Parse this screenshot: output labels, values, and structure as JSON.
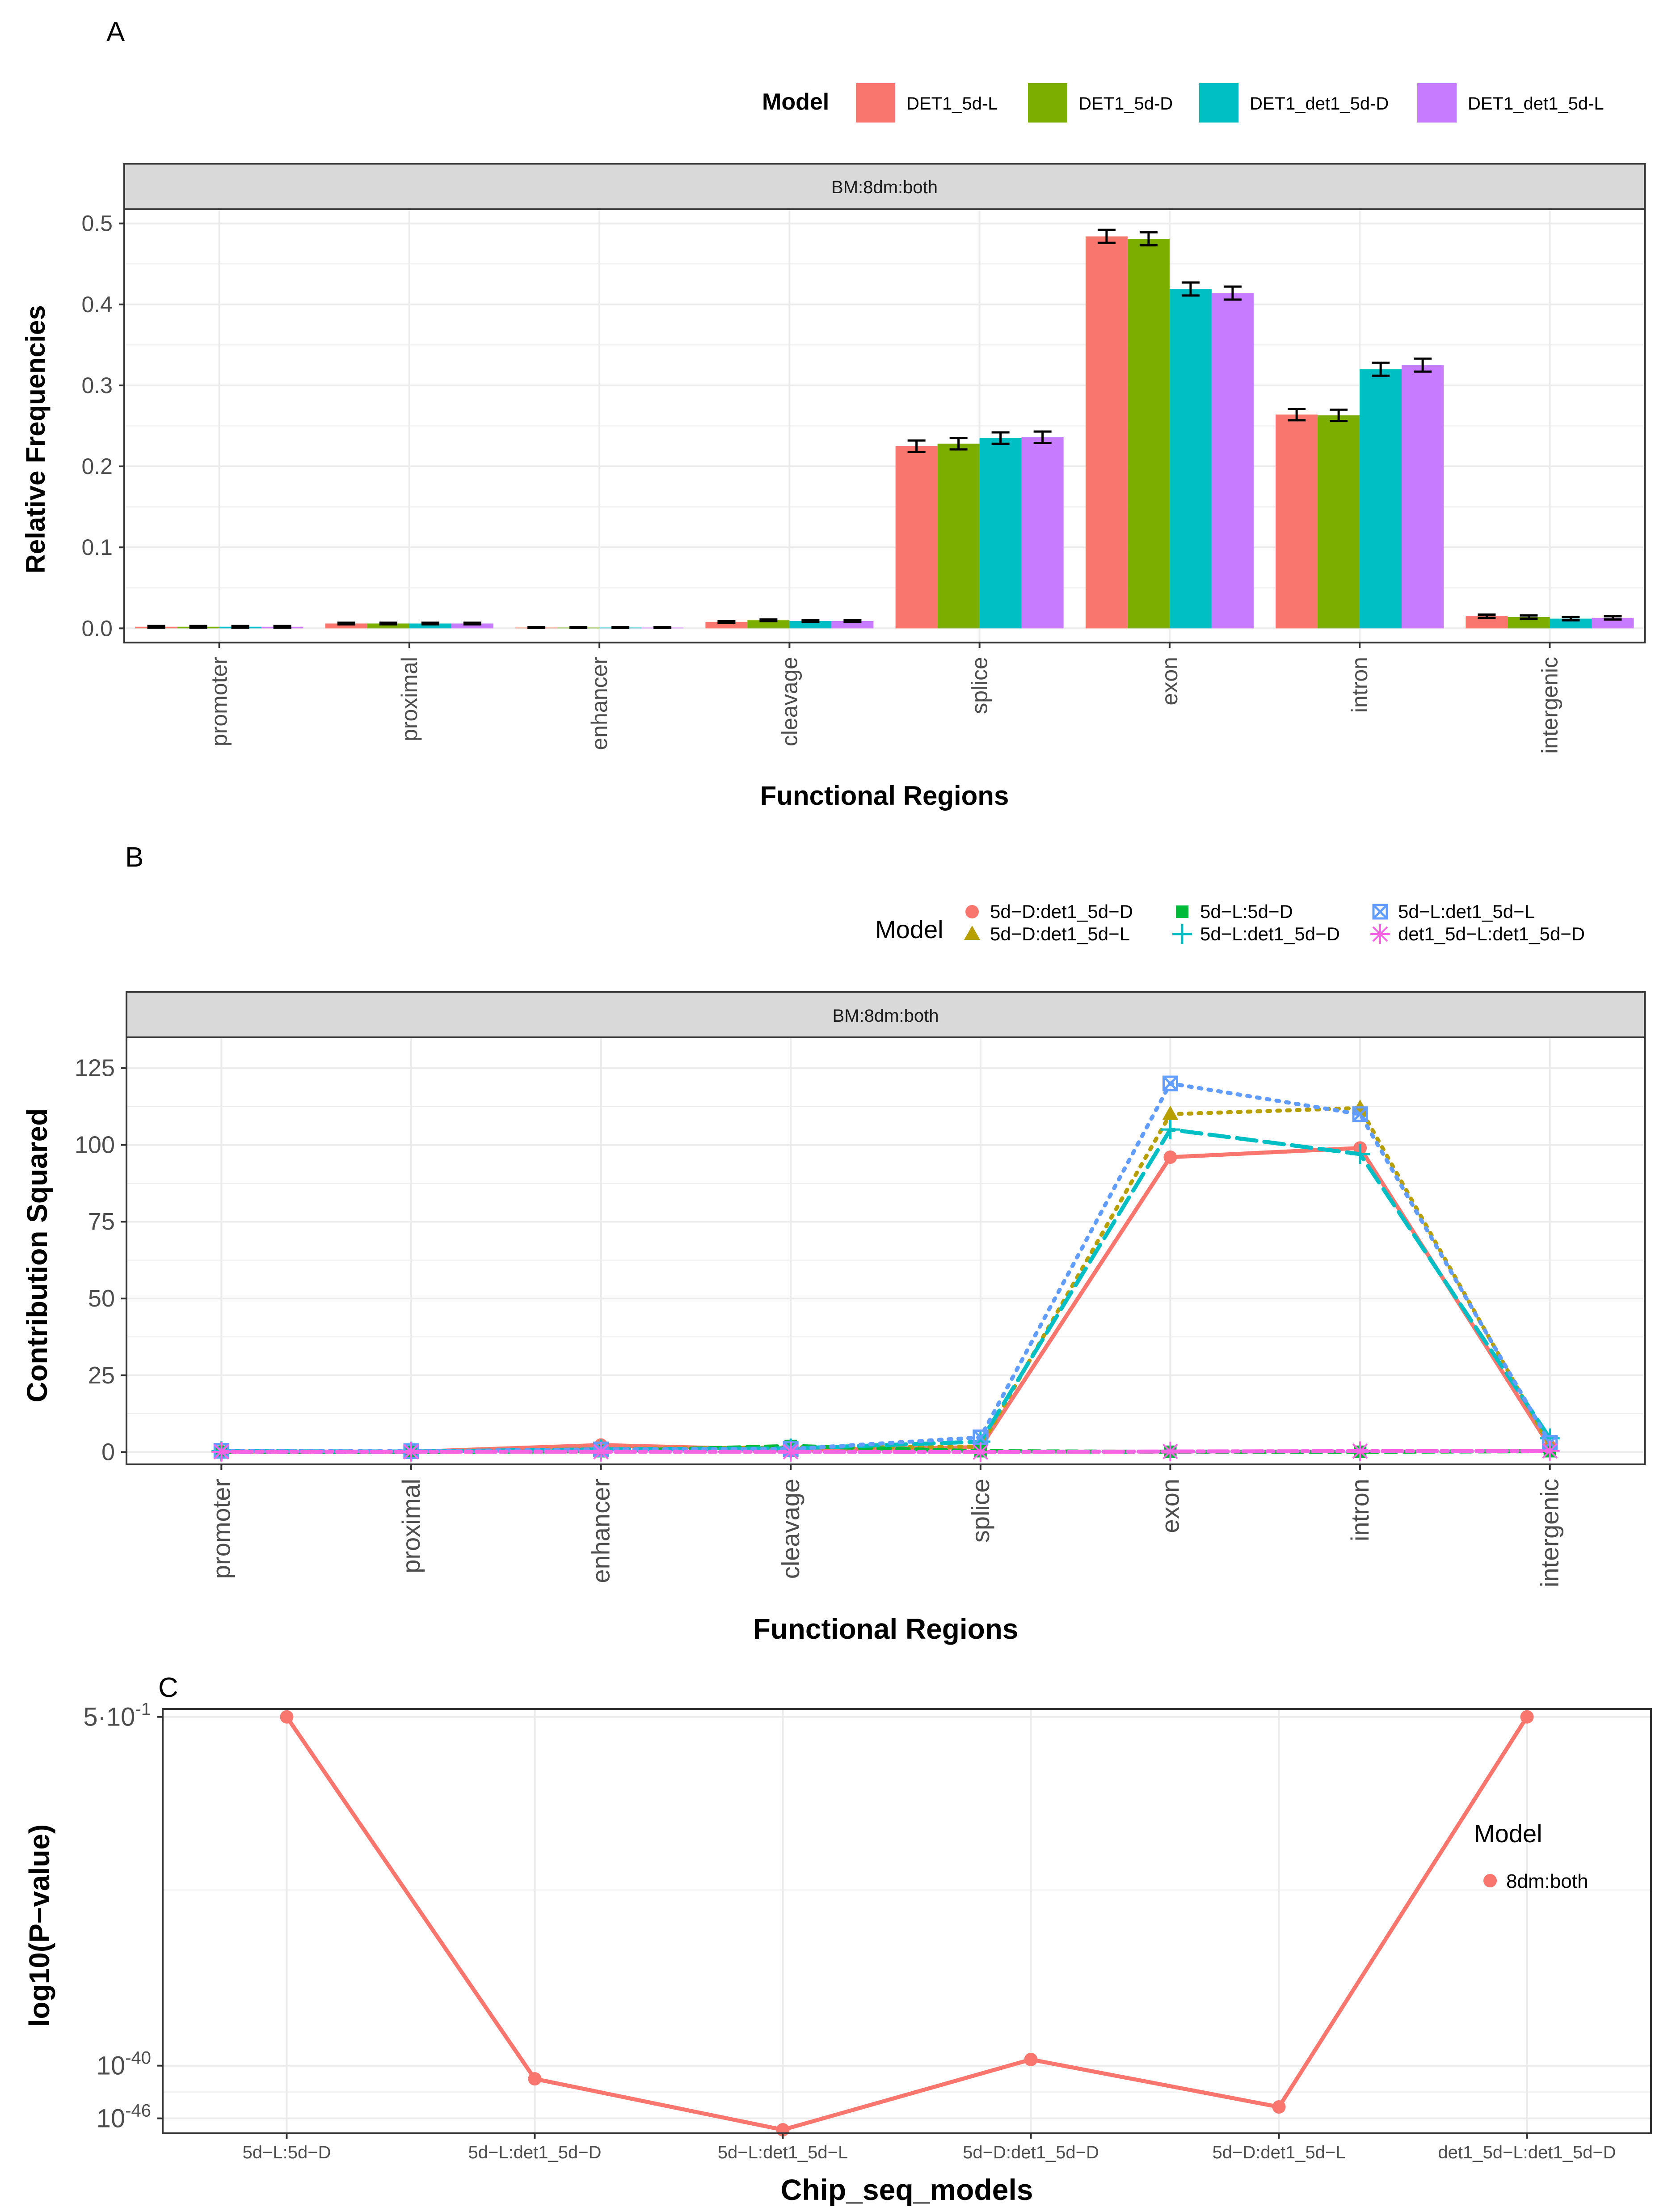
{
  "panels": {
    "a": {
      "letter": "A"
    },
    "b": {
      "letter": "B"
    },
    "c": {
      "letter": "C"
    }
  },
  "colors": {
    "red": "#F8766D",
    "olive": "#B79F00",
    "green": "#7CAE00",
    "green2": "#00BA38",
    "teal": "#00BFC4",
    "cyan": "#00BFC4",
    "blue": "#619CFF",
    "purple": "#C77CFF",
    "magenta": "#F564E3",
    "strip": "#D9D9D9",
    "grid": "#EBEBEB",
    "axis": "#333333"
  },
  "chart_data": [
    {
      "id": "A",
      "type": "bar",
      "title": "",
      "facet": "BM:8dm:both",
      "xlabel": "Functional Regions",
      "ylabel": "Relative Frequencies",
      "ylim": [
        0,
        0.5
      ],
      "yticks": [
        "0.0",
        "0.1",
        "0.2",
        "0.3",
        "0.4",
        "0.5"
      ],
      "legend_title": "Model",
      "legend_position": "top-right",
      "categories": [
        "promoter",
        "proximal",
        "enhancer",
        "cleavage",
        "splice",
        "exon",
        "intron",
        "intergenic"
      ],
      "series": [
        {
          "name": "DET1_5d-L",
          "color": "#F8766D",
          "values": [
            0.002,
            0.006,
            0.001,
            0.008,
            0.225,
            0.484,
            0.264,
            0.015
          ],
          "errors": [
            0.001,
            0.001,
            0.0005,
            0.001,
            0.007,
            0.008,
            0.007,
            0.002
          ]
        },
        {
          "name": "DET1_5d-D",
          "color": "#7CAE00",
          "values": [
            0.002,
            0.006,
            0.001,
            0.01,
            0.228,
            0.481,
            0.263,
            0.014
          ],
          "errors": [
            0.001,
            0.001,
            0.0005,
            0.001,
            0.007,
            0.008,
            0.007,
            0.002
          ]
        },
        {
          "name": "DET1_det1_5d-D",
          "color": "#00BFC4",
          "values": [
            0.002,
            0.006,
            0.001,
            0.009,
            0.235,
            0.419,
            0.32,
            0.012
          ],
          "errors": [
            0.001,
            0.001,
            0.0005,
            0.001,
            0.007,
            0.008,
            0.008,
            0.002
          ]
        },
        {
          "name": "DET1_det1_5d-L",
          "color": "#C77CFF",
          "values": [
            0.002,
            0.006,
            0.001,
            0.009,
            0.236,
            0.414,
            0.325,
            0.013
          ],
          "errors": [
            0.001,
            0.001,
            0.0005,
            0.001,
            0.007,
            0.008,
            0.008,
            0.002
          ]
        }
      ]
    },
    {
      "id": "B",
      "type": "line",
      "title": "",
      "facet": "BM:8dm:both",
      "xlabel": "Functional Regions",
      "ylabel": "Contribution Squared",
      "ylim": [
        -4,
        135
      ],
      "yticks": [
        0,
        25,
        50,
        75,
        100,
        125
      ],
      "legend_title": "Model",
      "legend_position": "top-right",
      "categories": [
        "promoter",
        "proximal",
        "enhancer",
        "cleavage",
        "splice",
        "exon",
        "intron",
        "intergenic"
      ],
      "series": [
        {
          "name": "5d−D:det1_5d−D",
          "color": "#F8766D",
          "dash": "solid",
          "marker": "circle",
          "values": [
            0.2,
            0.1,
            2.3,
            0.7,
            1.6,
            96,
            99,
            1.8
          ]
        },
        {
          "name": "5d−D:det1_5d−L",
          "color": "#B79F00",
          "dash": "dotted",
          "marker": "triangle",
          "values": [
            0.3,
            0.3,
            1.0,
            1.5,
            1.8,
            110,
            112,
            2.1
          ]
        },
        {
          "name": "5d−L:5d−D",
          "color": "#00BA38",
          "dash": "dashed",
          "marker": "square",
          "values": [
            0.0,
            0.0,
            0.3,
            2.0,
            0.3,
            0.1,
            0.1,
            0.3
          ]
        },
        {
          "name": "5d−L:det1_5d−D",
          "color": "#00BFC4",
          "dash": "longdash",
          "marker": "plus",
          "values": [
            0.3,
            0.2,
            0.9,
            1.2,
            3.4,
            105,
            97,
            4.5
          ]
        },
        {
          "name": "5d−L:det1_5d−L",
          "color": "#619CFF",
          "dash": "dotted",
          "marker": "squarecross",
          "values": [
            0.4,
            0.3,
            0.9,
            1.0,
            4.8,
            120,
            110,
            3.0
          ]
        },
        {
          "name": "det1_5d−L:det1_5d−D",
          "color": "#F564E3",
          "dash": "twodash",
          "marker": "asterisk",
          "values": [
            0.1,
            0.1,
            0.1,
            0.1,
            0.0,
            0.2,
            0.3,
            0.4
          ]
        }
      ]
    },
    {
      "id": "C",
      "type": "line",
      "title": "",
      "xlabel": "Chip_seq_models",
      "ylabel": "log10(P−value)",
      "yscale": "log10",
      "ylim_log10": [
        -47.7,
        0.6
      ],
      "yticks_log10": [
        -0.301,
        -40,
        -46
      ],
      "ytick_labels": [
        {
          "base": "5·10",
          "exp": "-1"
        },
        {
          "base": "10",
          "exp": "-40"
        },
        {
          "base": "10",
          "exp": "-46"
        }
      ],
      "minor_grid_log10": [
        -20,
        -43
      ],
      "legend_title": "Model",
      "legend_position": "right",
      "categories": [
        "5d−L:5d−D",
        "5d−L:det1_5d−D",
        "5d−L:det1_5d−L",
        "5d−D:det1_5d−D",
        "5d−D:det1_5d−L",
        "det1_5d−L:det1_5d−D"
      ],
      "series": [
        {
          "name": "8dm:both",
          "color": "#F8766D",
          "log10_values": [
            -0.301,
            -41.5,
            -47.3,
            -39.3,
            -44.7,
            -0.301
          ]
        }
      ]
    }
  ]
}
